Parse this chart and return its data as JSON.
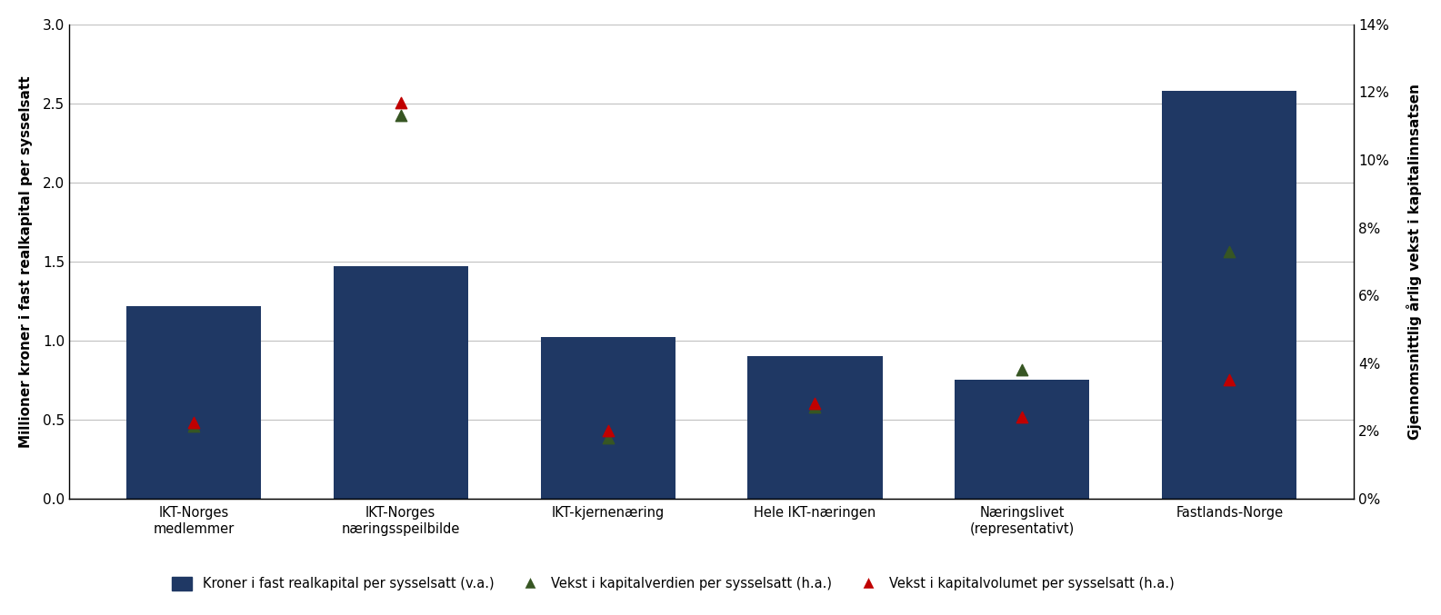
{
  "categories": [
    "IKT-Norges\nmedlemmer",
    "IKT-Norges\nnæringsspeilbilde",
    "IKT-kjernenæring",
    "Hele IKT-næringen",
    "Næringslivet\n(representativt)",
    "Fastlands-Norge"
  ],
  "bar_values": [
    1.22,
    1.47,
    1.02,
    0.9,
    0.75,
    2.58
  ],
  "green_triangle_values": [
    0.0215,
    0.113,
    0.018,
    0.027,
    0.038,
    0.073
  ],
  "red_triangle_values": [
    0.0225,
    0.117,
    0.02,
    0.028,
    0.024,
    0.035
  ],
  "bar_color": "#1F3864",
  "green_color": "#375623",
  "red_color": "#C00000",
  "left_ylim": [
    0.0,
    3.0
  ],
  "right_ylim": [
    0.0,
    0.14
  ],
  "left_yticks": [
    0.0,
    0.5,
    1.0,
    1.5,
    2.0,
    2.5,
    3.0
  ],
  "right_yticks": [
    0.0,
    0.02,
    0.04,
    0.06,
    0.08,
    0.1,
    0.12,
    0.14
  ],
  "right_yticklabels": [
    "0%",
    "2%",
    "4%",
    "6%",
    "8%",
    "10%",
    "12%",
    "14%"
  ],
  "ylabel_left": "Millioner kroner i fast realkapital per sysselsatt",
  "ylabel_right": "Gjennomsnittlig årlig vekst i kapitalinnsatsen",
  "legend_bar": "Kroner i fast realkapital per sysselsatt (v.a.)",
  "legend_green": "Vekst i kapitalverdien per sysselsatt (h.a.)",
  "legend_red": "Vekst i kapitalvolumet per sysselsatt (h.a.)",
  "background_color": "#FFFFFF",
  "grid_color": "#C0C0C0",
  "bar_width": 0.65
}
